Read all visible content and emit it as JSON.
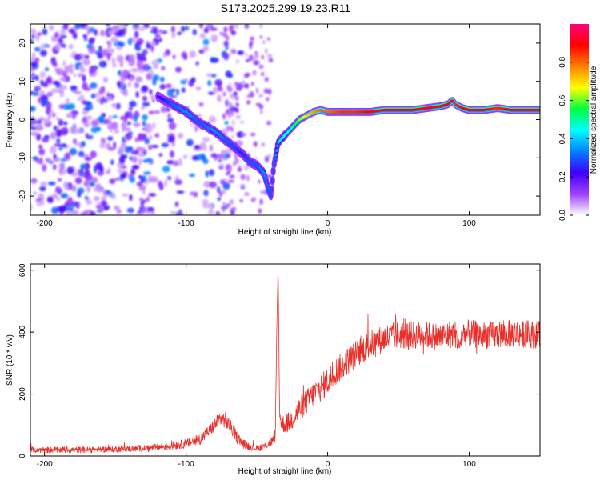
{
  "title": "S173.2025.299.19.23.R11",
  "chart_data": [
    {
      "type": "heatmap",
      "name": "spectrogram",
      "xlabel": "Height of straight line (km)",
      "ylabel": "Frequency (Hz)",
      "xlim": [
        -210,
        150
      ],
      "ylim": [
        -25,
        25
      ],
      "xticks": [
        -200,
        -100,
        0,
        100
      ],
      "yticks": [
        -20,
        -10,
        0,
        10,
        20
      ],
      "colorbar": {
        "label": "Normalized spectral amplitude",
        "range": [
          0,
          1
        ],
        "ticks": [
          "0.0",
          "0.2",
          "0.4",
          "0.6",
          "0.8"
        ],
        "colors": [
          "#ffffff",
          "#9f40ff",
          "#4000ff",
          "#0080ff",
          "#00ffff",
          "#00ff40",
          "#ffff00",
          "#ff8000",
          "#ff0000",
          "#ff0080"
        ]
      },
      "ridge_track": {
        "x": [
          -120,
          -110,
          -100,
          -90,
          -80,
          -70,
          -60,
          -55,
          -50,
          -45,
          -42,
          -40,
          -38,
          -35,
          -30,
          -25,
          -20,
          -15,
          -10,
          -5,
          0,
          10,
          20,
          30,
          40,
          50,
          60,
          70,
          80,
          85,
          88,
          90,
          95,
          100,
          110,
          120,
          130,
          140,
          150
        ],
        "y": [
          6,
          4,
          2,
          -1,
          -3,
          -6,
          -9,
          -11,
          -12,
          -14,
          -18,
          -20,
          -12,
          -6,
          -4,
          -2,
          0,
          1,
          2,
          2.5,
          2,
          2,
          2,
          2,
          2.5,
          2.5,
          2.5,
          3,
          3.5,
          4,
          5,
          4,
          3,
          2.5,
          2.5,
          3,
          2.5,
          2.5,
          2.5
        ],
        "amplitude": [
          0.2,
          0.3,
          0.35,
          0.3,
          0.35,
          0.3,
          0.25,
          0.3,
          0.3,
          0.35,
          0.3,
          0.3,
          0.3,
          0.4,
          0.45,
          0.5,
          0.6,
          0.7,
          0.75,
          0.8,
          0.8,
          0.85,
          0.85,
          0.9,
          0.9,
          0.9,
          0.9,
          0.9,
          0.9,
          0.9,
          0.9,
          0.85,
          0.9,
          0.9,
          0.9,
          0.85,
          0.9,
          0.9,
          0.9
        ]
      },
      "noise_region": {
        "x_range": [
          -210,
          -60
        ],
        "amplitude_range": [
          0.05,
          0.35
        ]
      }
    },
    {
      "type": "line",
      "name": "snr",
      "xlabel": "Height of straight line (km)",
      "ylabel": "SNR (10 * v/v)",
      "xlim": [
        -210,
        150
      ],
      "ylim": [
        0,
        620
      ],
      "xticks": [
        -200,
        -100,
        0,
        100
      ],
      "yticks": [
        0,
        200,
        400,
        600
      ],
      "color": "#e8302a",
      "series": [
        {
          "name": "SNR",
          "x": [
            -210,
            -190,
            -170,
            -150,
            -130,
            -115,
            -100,
            -90,
            -85,
            -80,
            -76,
            -72,
            -68,
            -64,
            -60,
            -55,
            -50,
            -45,
            -40,
            -37,
            -36,
            -35,
            -34,
            -33,
            -30,
            -25,
            -20,
            -15,
            -10,
            -5,
            0,
            5,
            10,
            15,
            20,
            25,
            30,
            35,
            40,
            50,
            60,
            70,
            80,
            90,
            93,
            95,
            100,
            110,
            120,
            130,
            140,
            150
          ],
          "y": [
            20,
            20,
            20,
            22,
            25,
            30,
            40,
            55,
            75,
            100,
            120,
            115,
            90,
            60,
            40,
            30,
            25,
            30,
            45,
            60,
            400,
            620,
            150,
            110,
            100,
            120,
            150,
            175,
            200,
            220,
            240,
            270,
            290,
            310,
            330,
            345,
            360,
            370,
            380,
            390,
            390,
            390,
            385,
            395,
            350,
            395,
            395,
            390,
            390,
            395,
            395,
            390
          ]
        }
      ],
      "noise_amplitude": [
        10,
        10,
        10,
        10,
        10,
        12,
        15,
        18,
        20,
        22,
        25,
        25,
        22,
        20,
        15,
        12,
        10,
        12,
        15,
        15,
        0,
        0,
        20,
        25,
        30,
        35,
        40,
        40,
        40,
        45,
        45,
        45,
        45,
        45,
        45,
        45,
        45,
        45,
        45,
        45,
        45,
        45,
        45,
        45,
        20,
        45,
        45,
        45,
        45,
        45,
        45,
        45
      ]
    }
  ]
}
